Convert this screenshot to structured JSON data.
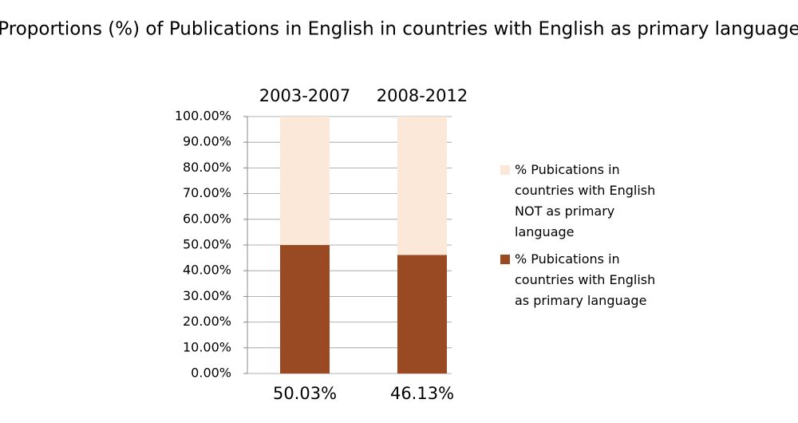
{
  "chart_data": {
    "type": "stacked_bar",
    "title": "Proportions (%) of Publications in English in countries with English as primary language",
    "categories": [
      "2003-2007",
      "2008-2012"
    ],
    "series": [
      {
        "name": "% Pubications in countries with English as primary language",
        "color": "#9a4a22",
        "values": [
          50.03,
          46.13
        ],
        "value_labels": [
          "50.03%",
          "46.13%"
        ]
      },
      {
        "name": "% Pubications in countries with English NOT as primary language",
        "color": "#fce8d8",
        "values": [
          49.97,
          53.87
        ]
      }
    ],
    "ylim": [
      0,
      100
    ],
    "yticks": [
      {
        "value": 0,
        "label": "0.00%"
      },
      {
        "value": 10,
        "label": "10.00%"
      },
      {
        "value": 20,
        "label": "20.00%"
      },
      {
        "value": 30,
        "label": "30.00%"
      },
      {
        "value": 40,
        "label": "40.00%"
      },
      {
        "value": 50,
        "label": "50.00%"
      },
      {
        "value": 60,
        "label": "60.00%"
      },
      {
        "value": 70,
        "label": "70.00%"
      },
      {
        "value": 80,
        "label": "80.00%"
      },
      {
        "value": 90,
        "label": "90.00%"
      },
      {
        "value": 100,
        "label": "100.00%"
      }
    ],
    "grid": true
  }
}
